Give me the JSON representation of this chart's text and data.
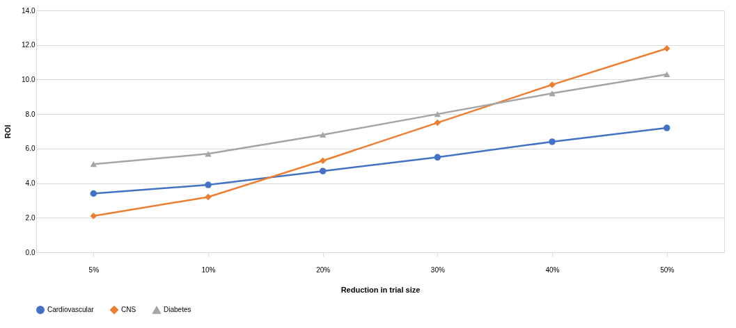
{
  "chart_data": {
    "type": "line",
    "xlabel": "Reduction in trial size",
    "ylabel": "ROI",
    "categories": [
      "5%",
      "10%",
      "20%",
      "30%",
      "40%",
      "50%"
    ],
    "series": [
      {
        "name": "Cardiovascular",
        "color": "#4472c4",
        "marker": "circle",
        "values": [
          3.4,
          3.9,
          4.7,
          5.5,
          6.4,
          7.2
        ]
      },
      {
        "name": "CNS",
        "color": "#ed7d31",
        "marker": "diamond",
        "values": [
          2.1,
          3.2,
          5.3,
          7.5,
          9.7,
          11.8
        ]
      },
      {
        "name": "Diabetes",
        "color": "#a5a5a5",
        "marker": "triangle",
        "values": [
          5.1,
          5.7,
          6.8,
          8.0,
          9.2,
          10.3
        ]
      }
    ],
    "ylim": [
      0,
      14
    ],
    "yticks": [
      {
        "value": 0,
        "label": "0.0"
      },
      {
        "value": 2,
        "label": "2.0"
      },
      {
        "value": 4,
        "label": "4.0"
      },
      {
        "value": 6,
        "label": "6.0"
      },
      {
        "value": 8,
        "label": "8.0"
      },
      {
        "value": 10,
        "label": "10.0"
      },
      {
        "value": 12,
        "label": "12.0"
      },
      {
        "value": 14,
        "label": "14.0"
      }
    ],
    "grid": "y",
    "legend": "bottom"
  }
}
